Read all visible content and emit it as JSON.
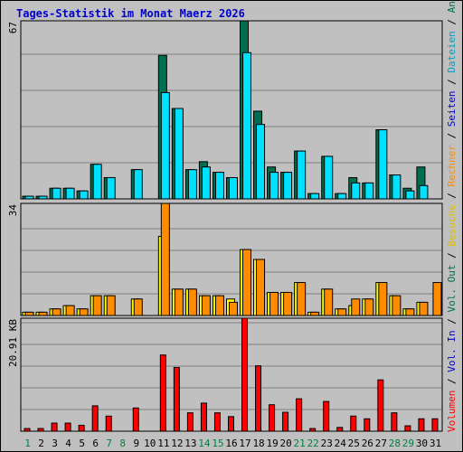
{
  "title": "Tages-Statistik im Monat Maerz 2026",
  "chart_data": {
    "type": "bar",
    "categories": [
      "1",
      "2",
      "3",
      "4",
      "5",
      "6",
      "7",
      "8",
      "9",
      "10",
      "11",
      "12",
      "13",
      "14",
      "15",
      "16",
      "17",
      "18",
      "19",
      "20",
      "21",
      "22",
      "23",
      "24",
      "25",
      "26",
      "27",
      "28",
      "29",
      "30",
      "31"
    ],
    "weekend_days": [
      "1",
      "7",
      "8",
      "14",
      "15",
      "21",
      "22",
      "28",
      "29"
    ],
    "panels": [
      {
        "id": "requests",
        "max_label": "67",
        "ylim": [
          0,
          67
        ],
        "series": [
          {
            "name": "Anfragen",
            "color": "#006e50",
            "values": [
              1,
              1,
              4,
              4,
              3,
              13,
              8,
              0,
              11,
              0,
              54,
              34,
              11,
              14,
              10,
              8,
              67,
              33,
              12,
              10,
              18,
              2,
              16,
              2,
              8,
              6,
              26,
              9,
              4,
              12,
              0
            ]
          },
          {
            "name": "Dateien",
            "color": "#00e0ff",
            "values": [
              1,
              1,
              4,
              4,
              3,
              13,
              8,
              0,
              11,
              0,
              40,
              34,
              11,
              12,
              10,
              8,
              55,
              28,
              10,
              10,
              18,
              2,
              16,
              2,
              6,
              6,
              26,
              9,
              3,
              5,
              0
            ]
          }
        ],
        "legend": [
          {
            "text": "Seiten",
            "color": "#0000cc"
          },
          {
            "text": "Dateien",
            "color": "#00a0c0"
          },
          {
            "text": "Anfragen",
            "color": "#006e50"
          }
        ]
      },
      {
        "id": "visits",
        "max_label": "34",
        "ylim": [
          0,
          34
        ],
        "series": [
          {
            "name": "Besuche",
            "color": "#ffff00",
            "values": [
              1,
              1,
              2,
              3,
              2,
              6,
              6,
              0,
              5,
              0,
              24,
              8,
              8,
              6,
              6,
              5,
              20,
              17,
              7,
              7,
              10,
              1,
              8,
              2,
              3,
              5,
              10,
              6,
              2,
              4,
              0
            ]
          },
          {
            "name": "Rechner",
            "color": "#ff8c00",
            "values": [
              1,
              1,
              2,
              3,
              2,
              6,
              6,
              0,
              5,
              0,
              34,
              8,
              8,
              6,
              6,
              4,
              20,
              17,
              7,
              7,
              10,
              1,
              8,
              2,
              5,
              5,
              10,
              6,
              2,
              4,
              10
            ]
          }
        ],
        "legend": [
          {
            "text": "Besuche",
            "color": "#e0c000"
          },
          {
            "text": "Rechner",
            "color": "#ff8c00"
          }
        ]
      },
      {
        "id": "volume",
        "max_label": "20.91 KB",
        "ylim": [
          0,
          20.91
        ],
        "series": [
          {
            "name": "Volumen",
            "color": "#ff0000",
            "values": [
              0.5,
              0.5,
              1.5,
              1.5,
              1.1,
              4.7,
              2.8,
              0,
              4.3,
              0,
              14.1,
              11.8,
              3.4,
              5.2,
              3.4,
              2.7,
              20.91,
              12.1,
              4.9,
              3.5,
              6.0,
              0.5,
              5.5,
              0.7,
              2.8,
              2.3,
              9.5,
              3.4,
              1.0,
              2.3,
              2.3
            ]
          }
        ],
        "legend": [
          {
            "text": "Volumen",
            "color": "#ff0000"
          },
          {
            "text": "Vol. In",
            "color": "#0000cc"
          },
          {
            "text": "Vol. Out",
            "color": "#006e50"
          }
        ]
      }
    ]
  }
}
